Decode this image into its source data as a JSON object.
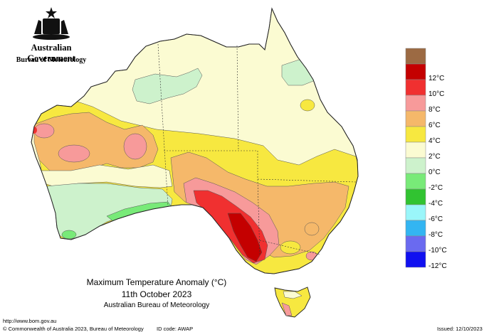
{
  "header": {
    "government": "Australian Government",
    "bureau": "Bureau of Meteorology"
  },
  "map": {
    "title": "Maximum Temperature Anomaly (°C)",
    "date": "11th October 2023",
    "source": "Australian Bureau of Meteorology",
    "region": "Australia"
  },
  "legend": {
    "bins": [
      {
        "label": "",
        "color": "#9c6a43"
      },
      {
        "label": "12°C",
        "color": "#c40000"
      },
      {
        "label": "10°C",
        "color": "#f03030"
      },
      {
        "label": "8°C",
        "color": "#f79a9a"
      },
      {
        "label": "6°C",
        "color": "#f5b86a"
      },
      {
        "label": "4°C",
        "color": "#f7e840"
      },
      {
        "label": "2°C",
        "color": "#fbfbd2"
      },
      {
        "label": "0°C",
        "color": "#cdf2cc"
      },
      {
        "label": "-2°C",
        "color": "#78ea78"
      },
      {
        "label": "-4°C",
        "color": "#31c331"
      },
      {
        "label": "-6°C",
        "color": "#9af6fa"
      },
      {
        "label": "-8°C",
        "color": "#33b5f2"
      },
      {
        "label": "-10°C",
        "color": "#6a6af0"
      },
      {
        "label": "-12°C",
        "color": "#1010f0"
      }
    ]
  },
  "footer": {
    "url": "http://www.bom.gov.au",
    "copyright": "© Commonwealth of Australia 2023, Bureau of Meteorology",
    "id_code": "ID code: AWAP",
    "issued": "Issued: 12/10/2023"
  }
}
